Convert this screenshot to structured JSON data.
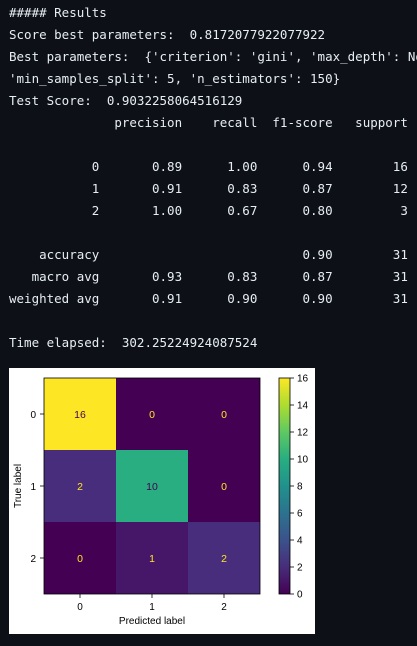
{
  "console": {
    "lines": [
      "##### Results",
      "Score best parameters:  0.8172077922077922",
      "Best parameters:  {'criterion': 'gini', 'max_depth': None,",
      "'min_samples_split': 5, 'n_estimators': 150}",
      "Test Score:  0.9032258064516129",
      "              precision    recall  f1-score   support",
      "",
      "           0       0.89      1.00      0.94        16",
      "           1       0.91      0.83      0.87        12",
      "           2       1.00      0.67      0.80         3",
      "",
      "    accuracy                           0.90        31",
      "   macro avg       0.93      0.83      0.87        31",
      "weighted avg       0.91      0.90      0.90        31",
      "",
      "Time elapsed:  302.25224924087524"
    ]
  },
  "chart_data": {
    "type": "heatmap",
    "x_categories": [
      "0",
      "1",
      "2"
    ],
    "y_categories": [
      "0",
      "1",
      "2"
    ],
    "values": [
      [
        16,
        0,
        0
      ],
      [
        2,
        10,
        0
      ],
      [
        0,
        1,
        2
      ]
    ],
    "xlabel": "Predicted label",
    "ylabel": "True label",
    "colormap": "viridis",
    "colorbar_range": [
      0,
      16
    ],
    "colorbar_ticks": [
      "0",
      "2",
      "4",
      "6",
      "8",
      "10",
      "12",
      "14",
      "16"
    ],
    "cell_text_colors": {
      "light": "#440154",
      "dark": "#fde725"
    }
  }
}
